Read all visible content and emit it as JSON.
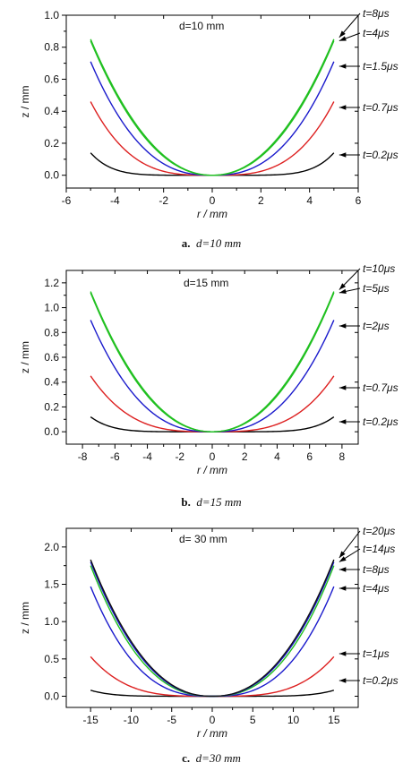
{
  "chart_data": [
    {
      "type": "line",
      "panel": "a",
      "caption_letter": "a.",
      "caption_text": "d=10 mm",
      "inset_label": "d=10 mm",
      "xlabel": "r / mm",
      "ylabel": "z / mm",
      "xlim": [
        -6,
        6
      ],
      "ylim": [
        -0.08,
        1.0
      ],
      "xticks": [
        -6,
        -4,
        -2,
        0,
        2,
        4,
        6
      ],
      "xtick_labels": [
        "-6",
        "-4",
        "-2",
        "0",
        "2",
        "4",
        "6"
      ],
      "yticks": [
        0.0,
        0.2,
        0.4,
        0.6,
        0.8,
        1.0
      ],
      "ytick_labels": [
        "0.0",
        "0.2",
        "0.4",
        "0.6",
        "0.8",
        "1.0"
      ],
      "r_max": 5,
      "series": [
        {
          "label": "t=0.2μs",
          "color": "#000000",
          "z_max": 0.14,
          "p": 6
        },
        {
          "label": "t=0.7μs",
          "color": "#dd2020",
          "z_max": 0.46,
          "p": 3.2
        },
        {
          "label": "t=1.5μs",
          "color": "#1a1acc",
          "z_max": 0.71,
          "p": 2.5
        },
        {
          "label": "t=4μs",
          "color": "#20c020",
          "z_max": 0.84,
          "p": 2.15
        },
        {
          "label": "t=8μs",
          "color": "#20c020",
          "z_max": 0.85,
          "p": 2.1
        }
      ]
    },
    {
      "type": "line",
      "panel": "b",
      "caption_letter": "b.",
      "caption_text": "d=15 mm",
      "inset_label": "d=15 mm",
      "xlabel": "r / mm",
      "ylabel": "z / mm",
      "xlim": [
        -9,
        9
      ],
      "ylim": [
        -0.1,
        1.3
      ],
      "xticks": [
        -8,
        -6,
        -4,
        -2,
        0,
        2,
        4,
        6,
        8
      ],
      "xtick_labels": [
        "-8",
        "-6",
        "-4",
        "-2",
        "0",
        "2",
        "4",
        "6",
        "8"
      ],
      "yticks": [
        0.0,
        0.2,
        0.4,
        0.6,
        0.8,
        1.0,
        1.2
      ],
      "ytick_labels": [
        "0.0",
        "0.2",
        "0.4",
        "0.6",
        "0.8",
        "1.0",
        "1.2"
      ],
      "r_max": 7.5,
      "series": [
        {
          "label": "t=0.2μs",
          "color": "#000000",
          "z_max": 0.12,
          "p": 6
        },
        {
          "label": "t=0.7μs",
          "color": "#dd2020",
          "z_max": 0.45,
          "p": 3.2
        },
        {
          "label": "t=2μs",
          "color": "#1a1acc",
          "z_max": 0.9,
          "p": 2.5
        },
        {
          "label": "t=5μs",
          "color": "#20c020",
          "z_max": 1.12,
          "p": 2.15
        },
        {
          "label": "t=10μs",
          "color": "#20c020",
          "z_max": 1.13,
          "p": 2.1
        }
      ]
    },
    {
      "type": "line",
      "panel": "c",
      "caption_letter": "c.",
      "caption_text": "d=30 mm",
      "inset_label": "d= 30 mm",
      "xlabel": "r / mm",
      "ylabel": "z / mm",
      "xlim": [
        -18,
        18
      ],
      "ylim": [
        -0.15,
        2.25
      ],
      "xticks": [
        -15,
        -10,
        -5,
        0,
        5,
        10,
        15
      ],
      "xtick_labels": [
        "-15",
        "-10",
        "-5",
        "0",
        "5",
        "10",
        "15"
      ],
      "yticks": [
        0.0,
        0.5,
        1.0,
        1.5,
        2.0
      ],
      "ytick_labels": [
        "0.0",
        "0.5",
        "1.0",
        "1.5",
        "2.0"
      ],
      "r_max": 15,
      "series": [
        {
          "label": "t=0.2μs",
          "color": "#000000",
          "z_max": 0.08,
          "p": 6
        },
        {
          "label": "t=1μs",
          "color": "#dd2020",
          "z_max": 0.53,
          "p": 3.5
        },
        {
          "label": "t=4μs",
          "color": "#1a1acc",
          "z_max": 1.47,
          "p": 2.7
        },
        {
          "label": "t=8μs",
          "color": "#20c020",
          "z_max": 1.75,
          "p": 2.4
        },
        {
          "label": "t=14μs",
          "color": "#1a1acc",
          "z_max": 1.8,
          "p": 2.3
        },
        {
          "label": "t=20μs",
          "color": "#111111",
          "z_max": 1.83,
          "p": 2.25
        }
      ]
    }
  ]
}
